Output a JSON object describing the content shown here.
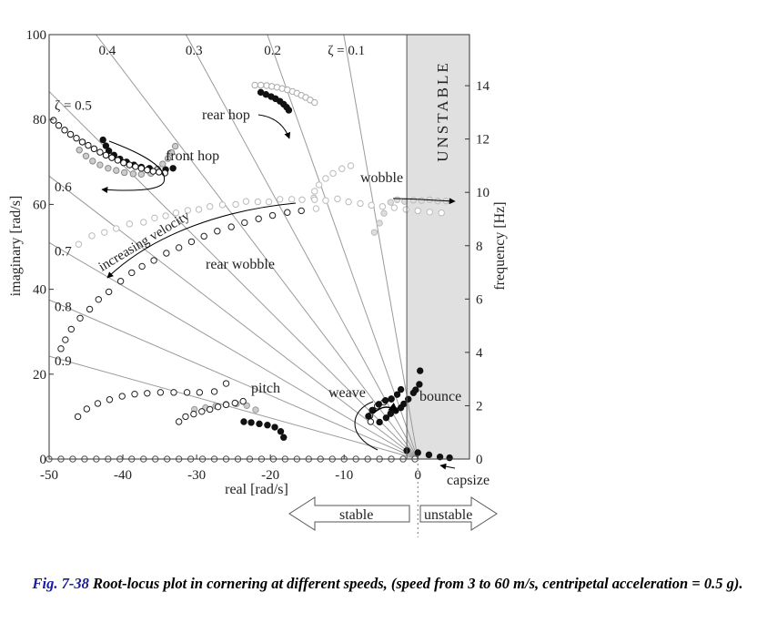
{
  "caption": {
    "fig_label": "Fig. 7-38",
    "text": "Root-locus plot in cornering at different speeds, (speed from 3 to 60 m/s, centripetal acceleration = 0.5 g)."
  },
  "chart_data": {
    "type": "scatter",
    "xlabel": "real [rad/s]",
    "ylabel": "imaginary [rad/s]",
    "y2label": "frequency [Hz]",
    "xlim": [
      -50,
      7
    ],
    "ylim": [
      0,
      100
    ],
    "xticks": [
      -50,
      -40,
      -30,
      -20,
      -10,
      0
    ],
    "yticks": [
      0,
      20,
      40,
      60,
      80,
      100
    ],
    "y2ticks": [
      0,
      2,
      4,
      6,
      8,
      10,
      12,
      14
    ],
    "unstable_from_x": -1.5,
    "zeta_labels": [
      {
        "label": "0.9",
        "value": 0.9
      },
      {
        "label": "0.8",
        "value": 0.8
      },
      {
        "label": "0.7",
        "value": 0.7
      },
      {
        "label": "0.6",
        "value": 0.6
      },
      {
        "label": "ζ = 0.5",
        "value": 0.5
      },
      {
        "label": "0.4",
        "value": 0.4
      },
      {
        "label": "0.3",
        "value": 0.3
      },
      {
        "label": "0.2",
        "value": 0.2
      },
      {
        "label": "ζ = 0.1",
        "value": 0.1
      }
    ],
    "region_labels": {
      "unstable_band": "UNSTABLE",
      "stable_arrow": "stable",
      "unstable_arrow": "unstable"
    },
    "annotations": [
      {
        "text": "rear hop",
        "x": -25.7,
        "y": 80
      },
      {
        "text": "front hop",
        "x": -35.3,
        "y": 70
      },
      {
        "text": "wobble",
        "x": -5.5,
        "y": 65
      },
      {
        "text": "increasing velocity",
        "x": -38,
        "y": 53
      },
      {
        "text": "rear wobble",
        "x": -25.5,
        "y": 45
      },
      {
        "text": "pitch",
        "x": -21.5,
        "y": 15.5
      },
      {
        "text": "weave",
        "x": -10.5,
        "y": 14.5
      },
      {
        "text": "bounce",
        "x": 1.7,
        "y": 13.5
      },
      {
        "text": "capsize",
        "x": 5.4,
        "y": -4.6
      }
    ],
    "series": [
      {
        "points": [
          [
            -22.1,
            88.1
          ],
          [
            -21.3,
            88.1
          ],
          [
            -20.5,
            88.0
          ],
          [
            -19.8,
            87.8
          ],
          [
            -19.1,
            87.6
          ],
          [
            -18.4,
            87.3
          ],
          [
            -17.7,
            87.0
          ],
          [
            -17.0,
            86.6
          ],
          [
            -16.4,
            86.2
          ],
          [
            -15.8,
            85.7
          ],
          [
            -15.2,
            85.2
          ],
          [
            -14.6,
            84.6
          ],
          [
            -14.0,
            84.0
          ]
        ]
      },
      {
        "points": [
          [
            -21.3,
            86.4
          ],
          [
            -20.6,
            85.9
          ],
          [
            -19.9,
            85.4
          ],
          [
            -19.3,
            84.9
          ],
          [
            -18.7,
            84.3
          ],
          [
            -18.2,
            83.6
          ],
          [
            -17.8,
            82.9
          ],
          [
            -17.5,
            82.2
          ]
        ]
      },
      {
        "points": [
          [
            -42.7,
            75.2
          ],
          [
            -42.3,
            73.8
          ],
          [
            -41.9,
            72.6
          ],
          [
            -41.2,
            71.6
          ],
          [
            -40.4,
            70.7
          ],
          [
            -39.5,
            70.0
          ],
          [
            -38.5,
            69.3
          ],
          [
            -37.5,
            68.8
          ],
          [
            -36.4,
            68.5
          ],
          [
            -35.3,
            68.3
          ],
          [
            -34.2,
            68.2
          ],
          [
            -33.2,
            68.5
          ]
        ]
      },
      {
        "points": [
          [
            -45.9,
            72.8
          ],
          [
            -45.0,
            71.4
          ],
          [
            -44.1,
            70.2
          ],
          [
            -43.1,
            69.3
          ],
          [
            -42.0,
            68.5
          ],
          [
            -40.9,
            68.0
          ],
          [
            -39.8,
            67.5
          ],
          [
            -38.6,
            67.2
          ],
          [
            -37.5,
            67.1
          ],
          [
            -36.2,
            67.3
          ],
          [
            -35.3,
            68.2
          ],
          [
            -34.6,
            69.5
          ],
          [
            -33.9,
            70.8
          ],
          [
            -33.4,
            72.2
          ],
          [
            -32.9,
            73.7
          ]
        ]
      },
      {
        "points": [
          [
            -49.4,
            79.8
          ],
          [
            -48.7,
            78.6
          ],
          [
            -47.9,
            77.5
          ],
          [
            -47.1,
            76.5
          ],
          [
            -46.3,
            75.6
          ],
          [
            -45.5,
            74.7
          ],
          [
            -44.7,
            73.9
          ],
          [
            -43.9,
            73.1
          ],
          [
            -43.1,
            72.3
          ],
          [
            -42.3,
            71.6
          ],
          [
            -41.5,
            71.0
          ],
          [
            -40.7,
            70.4
          ],
          [
            -39.9,
            69.8
          ],
          [
            -39.1,
            69.3
          ],
          [
            -38.3,
            68.9
          ],
          [
            -37.5,
            68.5
          ],
          [
            -36.7,
            68.1
          ],
          [
            -35.9,
            67.8
          ],
          [
            -35.1,
            67.6
          ],
          [
            -34.3,
            67.4
          ]
        ]
      },
      {
        "points": [
          [
            -46.0,
            50.6
          ],
          [
            -44.2,
            52.6
          ],
          [
            -42.5,
            53.4
          ],
          [
            -40.9,
            54.3
          ],
          [
            -39.1,
            55.4
          ],
          [
            -37.2,
            55.8
          ],
          [
            -35.7,
            56.8
          ],
          [
            -34.2,
            57.3
          ],
          [
            -32.8,
            58.0
          ],
          [
            -31.2,
            58.6
          ],
          [
            -29.7,
            58.8
          ],
          [
            -28.2,
            59.5
          ],
          [
            -26.5,
            59.9
          ],
          [
            -24.7,
            60.0
          ],
          [
            -23.3,
            60.7
          ],
          [
            -21.7,
            60.6
          ],
          [
            -20.2,
            60.6
          ],
          [
            -18.7,
            61.2
          ],
          [
            -17.1,
            61.2
          ],
          [
            -15.7,
            61.1
          ],
          [
            -14.1,
            61.5
          ],
          [
            -12.5,
            60.9
          ],
          [
            -10.9,
            61.3
          ],
          [
            -9.4,
            60.6
          ],
          [
            -7.8,
            60.2
          ],
          [
            -6.3,
            59.8
          ],
          [
            -4.8,
            59.5
          ],
          [
            -3.2,
            59.2
          ],
          [
            -1.6,
            58.8
          ],
          [
            0.0,
            58.5
          ],
          [
            1.6,
            58.2
          ],
          [
            3.2,
            58.0
          ]
        ]
      },
      {
        "points": [
          [
            -13.8,
            59.0
          ],
          [
            -14.0,
            61.1
          ],
          [
            -14.0,
            63.1
          ],
          [
            -13.4,
            64.6
          ],
          [
            -12.5,
            66.1
          ],
          [
            -11.5,
            67.3
          ],
          [
            -10.3,
            68.4
          ],
          [
            -9.1,
            69.1
          ]
        ]
      },
      {
        "points": [
          [
            -5.9,
            53.4
          ],
          [
            -5.2,
            55.6
          ],
          [
            -4.6,
            57.9
          ],
          [
            -3.7,
            60.5
          ],
          [
            -2.8,
            61.1
          ],
          [
            -1.8,
            60.7
          ],
          [
            -0.6,
            61.0
          ],
          [
            0.5,
            60.9
          ],
          [
            1.6,
            61.1
          ],
          [
            2.7,
            60.8
          ],
          [
            3.8,
            60.8
          ]
        ]
      },
      {
        "points": [
          [
            -48.4,
            26.0
          ],
          [
            -47.8,
            28.1
          ],
          [
            -47.0,
            30.6
          ],
          [
            -45.8,
            33.2
          ],
          [
            -44.5,
            35.3
          ],
          [
            -43.3,
            37.6
          ],
          [
            -41.9,
            39.4
          ],
          [
            -40.3,
            41.9
          ],
          [
            -38.8,
            43.9
          ],
          [
            -37.4,
            45.4
          ],
          [
            -35.8,
            46.8
          ],
          [
            -34.1,
            48.5
          ],
          [
            -32.4,
            49.8
          ],
          [
            -30.7,
            51.2
          ],
          [
            -29.0,
            52.5
          ],
          [
            -27.2,
            53.7
          ],
          [
            -25.3,
            54.7
          ],
          [
            -23.5,
            55.7
          ],
          [
            -21.6,
            56.6
          ],
          [
            -19.7,
            57.4
          ],
          [
            -17.7,
            58.1
          ],
          [
            -15.8,
            58.5
          ]
        ]
      },
      {
        "points": [
          [
            -46.1,
            10.0
          ],
          [
            -44.9,
            11.8
          ],
          [
            -43.4,
            13.1
          ],
          [
            -41.8,
            14.0
          ],
          [
            -40.1,
            14.8
          ],
          [
            -38.4,
            15.3
          ],
          [
            -36.7,
            15.5
          ],
          [
            -34.9,
            15.7
          ],
          [
            -33.1,
            15.7
          ],
          [
            -31.3,
            15.7
          ],
          [
            -29.6,
            15.7
          ],
          [
            -27.6,
            15.9
          ],
          [
            -26.0,
            17.8
          ]
        ]
      },
      {
        "points": [
          [
            -30.3,
            11.7
          ],
          [
            -28.8,
            12.1
          ],
          [
            -27.4,
            12.5
          ],
          [
            -26.0,
            12.9
          ],
          [
            -24.6,
            13.0
          ],
          [
            -23.2,
            12.6
          ],
          [
            -22.0,
            11.6
          ]
        ]
      },
      {
        "points": [
          [
            -23.6,
            8.8
          ],
          [
            -22.6,
            8.6
          ],
          [
            -21.5,
            8.3
          ],
          [
            -20.4,
            8.0
          ],
          [
            -19.4,
            7.5
          ],
          [
            -18.6,
            6.5
          ],
          [
            -18.2,
            5.1
          ]
        ]
      },
      {
        "points": [
          [
            -32.4,
            8.8
          ],
          [
            -31.5,
            10.0
          ],
          [
            -30.4,
            10.6
          ],
          [
            -29.3,
            11.2
          ],
          [
            -28.2,
            11.7
          ],
          [
            -27.1,
            12.3
          ],
          [
            -26.0,
            12.8
          ],
          [
            -24.8,
            13.2
          ],
          [
            -23.7,
            13.6
          ]
        ]
      },
      {
        "points": [
          [
            -6.4,
            8.8
          ],
          [
            -6.5,
            10.2
          ],
          [
            -6.2,
            11.5
          ],
          [
            -5.5,
            12.5
          ],
          [
            -4.6,
            13.4
          ],
          [
            -3.6,
            14.1
          ]
        ]
      },
      {
        "points": [
          [
            -6.7,
            10.1
          ],
          [
            -6.1,
            11.5
          ],
          [
            -5.3,
            12.9
          ],
          [
            -4.4,
            13.8
          ],
          [
            -3.6,
            14.2
          ],
          [
            -2.8,
            15.2
          ],
          [
            -2.3,
            16.4
          ]
        ]
      },
      {
        "points": [
          [
            -5.2,
            8.7
          ],
          [
            -4.3,
            9.7
          ],
          [
            -3.7,
            10.7
          ],
          [
            -3.0,
            11.4
          ],
          [
            -2.3,
            12.1
          ],
          [
            -1.9,
            13.0
          ],
          [
            -1.3,
            14.1
          ],
          [
            -0.6,
            15.6
          ],
          [
            -0.3,
            16.3
          ],
          [
            0.2,
            17.6
          ],
          [
            0.3,
            20.8
          ]
        ]
      },
      {
        "points": [
          [
            -1.5,
            2.0
          ],
          [
            0.0,
            1.5
          ],
          [
            1.5,
            1.0
          ],
          [
            3.0,
            0.5
          ],
          [
            4.3,
            0.3
          ]
        ]
      },
      {
        "points": [
          [
            -50,
            0
          ],
          [
            -48.4,
            0
          ],
          [
            -46.8,
            0
          ],
          [
            -45.2,
            0
          ],
          [
            -43.6,
            0
          ],
          [
            -42.0,
            0
          ],
          [
            -40.4,
            0
          ],
          [
            -38.8,
            0
          ],
          [
            -37.2,
            0
          ],
          [
            -35.6,
            0
          ],
          [
            -34.0,
            0
          ],
          [
            -32.4,
            0
          ],
          [
            -30.8,
            0
          ],
          [
            -29.2,
            0
          ],
          [
            -27.6,
            0
          ],
          [
            -26.0,
            0
          ],
          [
            -24.4,
            0
          ],
          [
            -22.8,
            0
          ],
          [
            -21.2,
            0
          ],
          [
            -19.6,
            0
          ],
          [
            -18.0,
            0
          ],
          [
            -16.4,
            0
          ],
          [
            -14.8,
            0
          ],
          [
            -13.2,
            0
          ],
          [
            -11.6,
            0
          ],
          [
            -10.0,
            0
          ],
          [
            -8.4,
            0
          ],
          [
            -6.8,
            0
          ],
          [
            -5.2,
            0
          ],
          [
            -3.6,
            0
          ],
          [
            -2.0,
            0
          ],
          [
            -0.4,
            0
          ]
        ]
      }
    ]
  }
}
